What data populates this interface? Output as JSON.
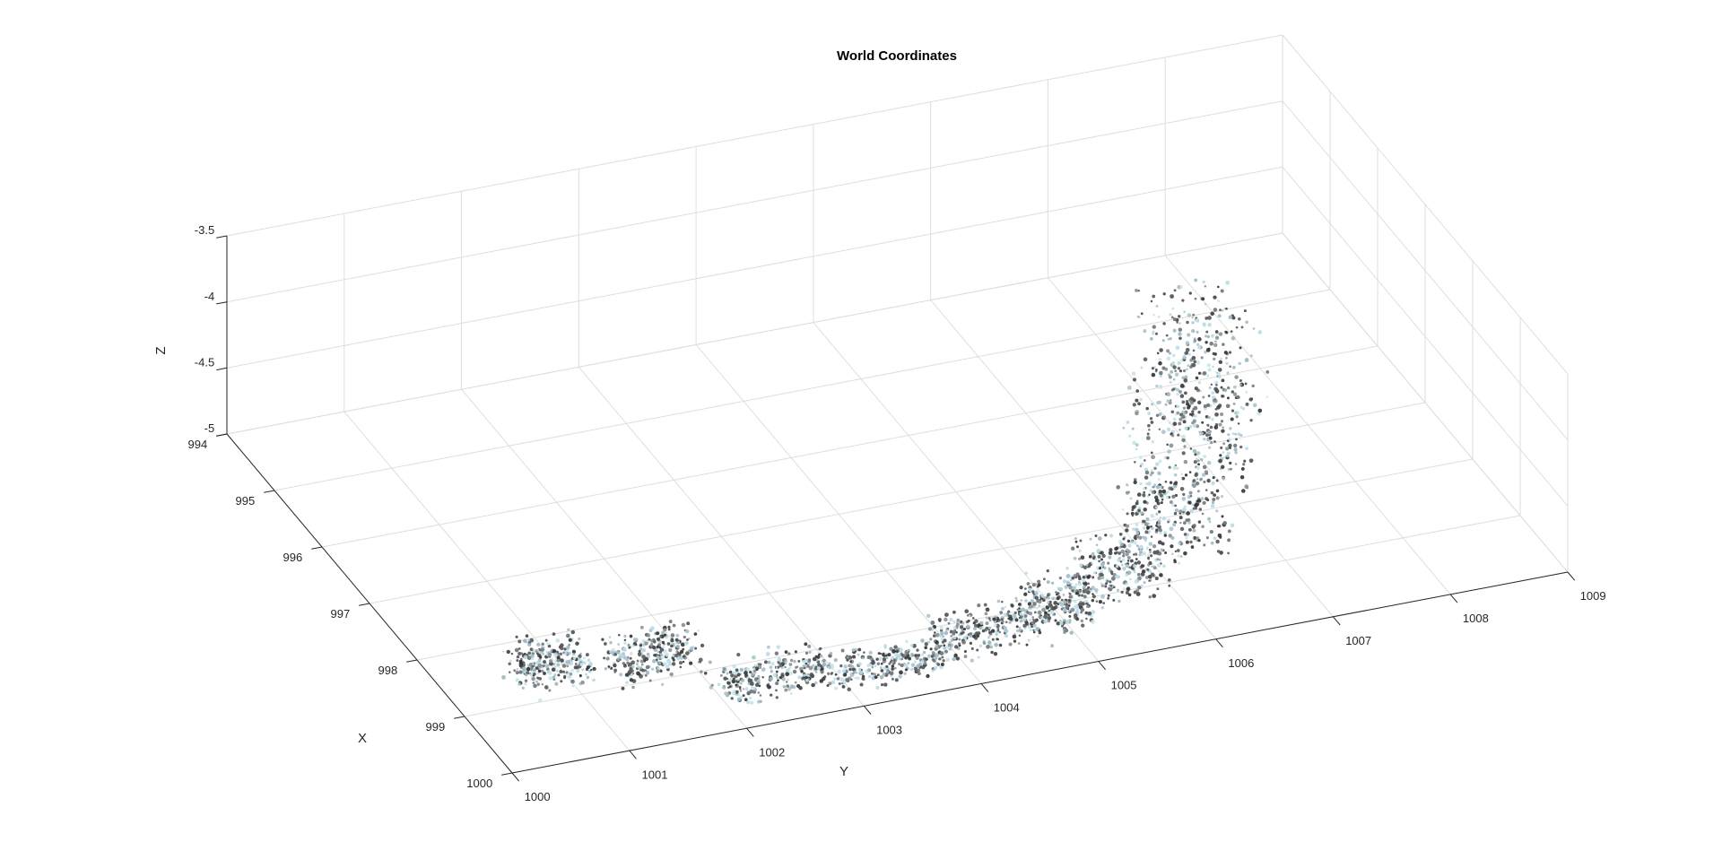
{
  "chart_data": {
    "type": "scatter3d",
    "title": "World Coordinates",
    "xlabel": "X",
    "ylabel": "Y",
    "zlabel": "Z",
    "xlim": [
      994,
      1000
    ],
    "ylim": [
      1000,
      1009
    ],
    "zlim": [
      -5,
      -3.5
    ],
    "x_ticks": [
      994,
      995,
      996,
      997,
      998,
      999,
      1000
    ],
    "y_ticks": [
      1000,
      1001,
      1002,
      1003,
      1004,
      1005,
      1006,
      1007,
      1008,
      1009
    ],
    "z_ticks": [
      -5,
      -4.5,
      -4,
      -3.5
    ],
    "grid": true,
    "point_cloud": {
      "description_units": "data",
      "point_colors": [
        "#5a5a5a",
        "#3f3f3f",
        "#8a8f93",
        "#a8c4cf",
        "#b9dbe6",
        "#6e7478",
        "#4c4f52",
        "#9fb7c0",
        "#2f3133",
        "#c7e3ec"
      ],
      "segments": [
        {
          "x": [
            998.9,
            998.4
          ],
          "y": [
            1000.6,
            1001.2
          ],
          "z": [
            -5.0,
            -4.8
          ]
        },
        {
          "x": [
            998.7,
            999.0
          ],
          "y": [
            1001.3,
            1002.0
          ],
          "z": [
            -5.0,
            -4.75
          ]
        },
        {
          "x": [
            999.3,
            999.6
          ],
          "y": [
            1002.0,
            1002.9
          ],
          "z": [
            -5.0,
            -4.8
          ]
        },
        {
          "x": [
            999.5,
            999.7
          ],
          "y": [
            1002.9,
            1003.8
          ],
          "z": [
            -5.0,
            -4.8
          ]
        },
        {
          "x": [
            999.3,
            999.6
          ],
          "y": [
            1003.8,
            1004.7
          ],
          "z": [
            -5.0,
            -4.75
          ]
        },
        {
          "x": [
            999.1,
            999.5
          ],
          "y": [
            1004.6,
            1005.2
          ],
          "z": [
            -5.0,
            -4.7
          ]
        },
        {
          "x": [
            998.9,
            999.3
          ],
          "y": [
            1005.2,
            1005.9
          ],
          "z": [
            -4.95,
            -4.55
          ]
        },
        {
          "x": [
            998.4,
            999.0
          ],
          "y": [
            1005.8,
            1006.5
          ],
          "z": [
            -4.9,
            -4.35
          ]
        },
        {
          "x": [
            997.6,
            998.5
          ],
          "y": [
            1006.2,
            1007.0
          ],
          "z": [
            -4.7,
            -4.05
          ]
        },
        {
          "x": [
            996.8,
            997.8
          ],
          "y": [
            1006.6,
            1007.3
          ],
          "z": [
            -4.5,
            -3.75
          ]
        }
      ]
    }
  }
}
